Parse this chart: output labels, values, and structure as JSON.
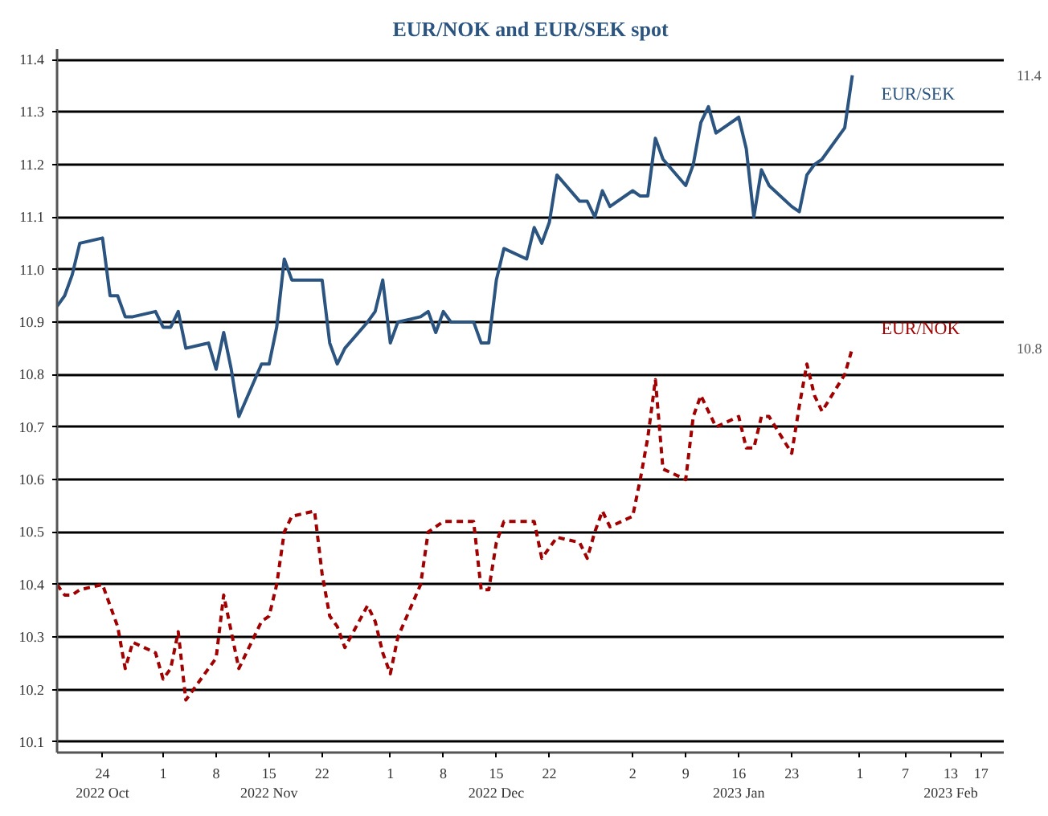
{
  "chart_data": {
    "type": "line",
    "title": "EUR/NOK and EUR/SEK spot",
    "x": [
      "2022-10-18",
      "2022-10-19",
      "2022-10-20",
      "2022-10-21",
      "2022-10-24",
      "2022-10-25",
      "2022-10-26",
      "2022-10-27",
      "2022-10-28",
      "2022-10-31",
      "2022-11-01",
      "2022-11-02",
      "2022-11-03",
      "2022-11-04",
      "2022-11-07",
      "2022-11-08",
      "2022-11-09",
      "2022-11-10",
      "2022-11-11",
      "2022-11-14",
      "2022-11-15",
      "2022-11-16",
      "2022-11-17",
      "2022-11-18",
      "2022-11-21",
      "2022-11-22",
      "2022-11-23",
      "2022-11-24",
      "2022-11-25",
      "2022-11-28",
      "2022-11-29",
      "2022-11-30",
      "2022-12-01",
      "2022-12-02",
      "2022-12-05",
      "2022-12-06",
      "2022-12-07",
      "2022-12-08",
      "2022-12-09",
      "2022-12-12",
      "2022-12-13",
      "2022-12-14",
      "2022-12-15",
      "2022-12-16",
      "2022-12-19",
      "2022-12-20",
      "2022-12-21",
      "2022-12-22",
      "2022-12-23",
      "2022-12-26",
      "2022-12-27",
      "2022-12-28",
      "2022-12-29",
      "2022-12-30",
      "2023-01-02",
      "2023-01-03",
      "2023-01-04",
      "2023-01-05",
      "2023-01-06",
      "2023-01-09",
      "2023-01-10",
      "2023-01-11",
      "2023-01-12",
      "2023-01-13",
      "2023-01-16",
      "2023-01-17",
      "2023-01-18",
      "2023-01-19",
      "2023-01-20",
      "2023-01-23",
      "2023-01-24",
      "2023-01-25",
      "2023-01-26",
      "2023-01-27",
      "2023-01-30",
      "2023-01-31"
    ],
    "series": [
      {
        "name": "EUR/SEK",
        "color": "#2b5580",
        "line_style": "solid",
        "values": [
          10.93,
          10.95,
          10.99,
          11.05,
          11.06,
          10.95,
          10.95,
          10.91,
          10.91,
          10.92,
          10.89,
          10.89,
          10.92,
          10.85,
          10.86,
          10.81,
          10.88,
          10.81,
          10.72,
          10.82,
          10.82,
          10.89,
          11.02,
          10.98,
          10.98,
          10.98,
          10.86,
          10.82,
          10.85,
          10.9,
          10.92,
          10.98,
          10.86,
          10.9,
          10.91,
          10.92,
          10.88,
          10.92,
          10.9,
          10.9,
          10.86,
          10.86,
          10.98,
          11.04,
          11.02,
          11.08,
          11.05,
          11.09,
          11.18,
          11.13,
          11.13,
          11.1,
          11.15,
          11.12,
          11.15,
          11.14,
          11.14,
          11.25,
          11.21,
          11.16,
          11.2,
          11.28,
          11.31,
          11.26,
          11.29,
          11.23,
          11.1,
          11.19,
          11.16,
          11.12,
          11.11,
          11.18,
          11.2,
          11.21,
          11.27,
          11.37
        ]
      },
      {
        "name": "EUR/NOK",
        "color": "#a00000",
        "line_style": "dashed",
        "values": [
          10.4,
          10.38,
          10.38,
          10.39,
          10.4,
          10.36,
          10.32,
          10.24,
          10.29,
          10.27,
          10.22,
          10.24,
          10.31,
          10.18,
          10.24,
          10.26,
          10.38,
          10.31,
          10.24,
          10.33,
          10.34,
          10.4,
          10.5,
          10.53,
          10.54,
          10.42,
          10.34,
          10.32,
          10.28,
          10.36,
          10.33,
          10.27,
          10.23,
          10.3,
          10.4,
          10.5,
          10.51,
          10.52,
          10.52,
          10.52,
          10.39,
          10.39,
          10.48,
          10.52,
          10.52,
          10.52,
          10.45,
          10.47,
          10.49,
          10.48,
          10.45,
          10.5,
          10.54,
          10.51,
          10.53,
          10.6,
          10.68,
          10.79,
          10.62,
          10.6,
          10.72,
          10.76,
          10.73,
          10.7,
          10.72,
          10.66,
          10.66,
          10.72,
          10.72,
          10.65,
          10.74,
          10.82,
          10.76,
          10.73,
          10.8,
          10.85
        ]
      }
    ],
    "xlim": [
      "2022-10-18",
      "2023-02-20"
    ],
    "xticks": [
      {
        "value": "2022-10-24",
        "label": "24\n2022 Oct"
      },
      {
        "value": "2022-11-01",
        "label": "1"
      },
      {
        "value": "2022-11-08",
        "label": "8"
      },
      {
        "value": "2022-11-15",
        "label": "15\n2022 Nov"
      },
      {
        "value": "2022-11-22",
        "label": "22"
      },
      {
        "value": "2022-12-01",
        "label": "1"
      },
      {
        "value": "2022-12-08",
        "label": "8"
      },
      {
        "value": "2022-12-15",
        "label": "15\n2022 Dec"
      },
      {
        "value": "2022-12-22",
        "label": "22"
      },
      {
        "value": "2023-01-02",
        "label": "2"
      },
      {
        "value": "2023-01-09",
        "label": "9"
      },
      {
        "value": "2023-01-16",
        "label": "16\n2023 Jan"
      },
      {
        "value": "2023-01-23",
        "label": "23"
      },
      {
        "value": "2023-02-01",
        "label": "1"
      },
      {
        "value": "2023-02-07",
        "label": "7"
      },
      {
        "value": "2023-02-13",
        "label": "13\n2023 Feb"
      },
      {
        "value": "2023-02-17",
        "label": "17"
      }
    ],
    "ylim": [
      10.08,
      11.42
    ],
    "yticks": [
      10.1,
      10.2,
      10.3,
      10.4,
      10.5,
      10.6,
      10.7,
      10.8,
      10.9,
      {
        "value": 11.0,
        "label": "11.0"
      },
      11.1,
      11.2,
      11.3,
      11.4
    ],
    "annotations": [
      "11.4",
      "10.8"
    ],
    "grid": "y",
    "legend": false,
    "marker": "none"
  }
}
